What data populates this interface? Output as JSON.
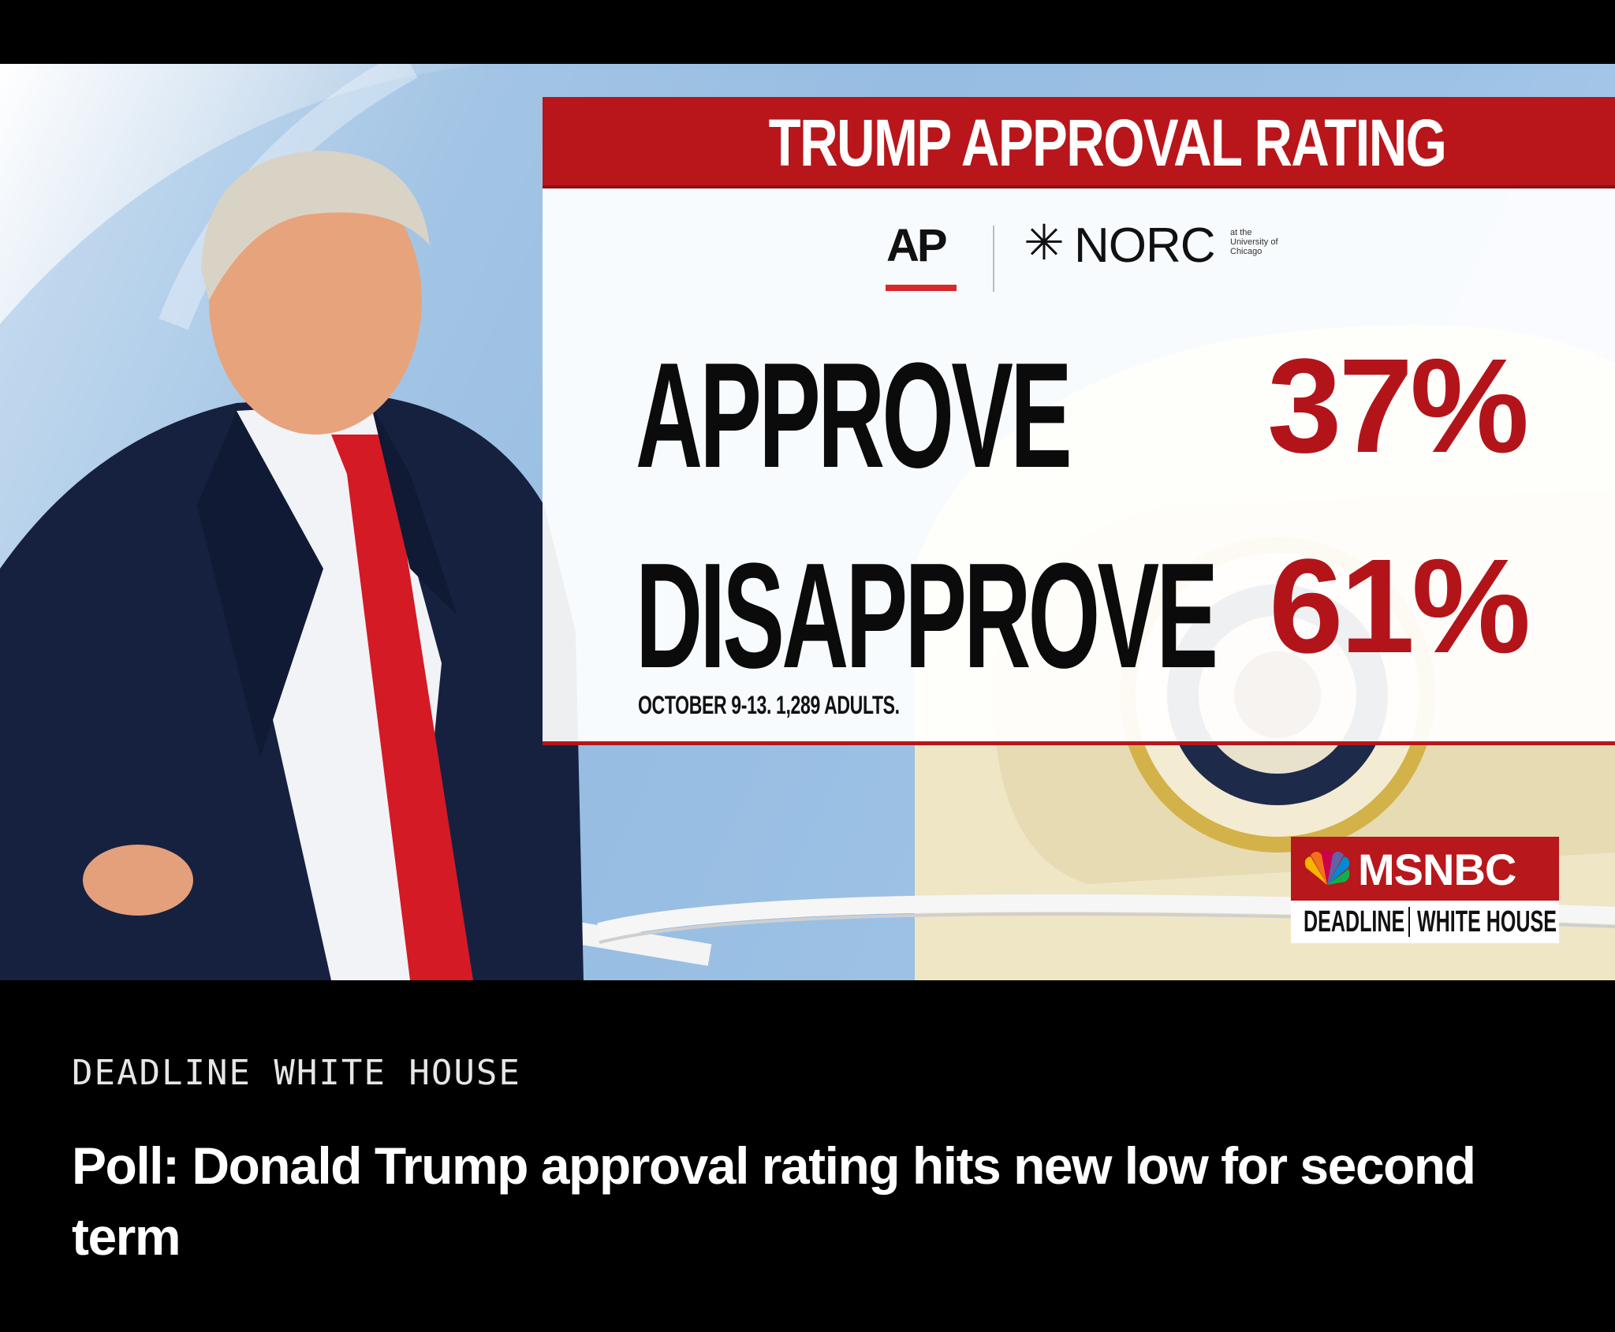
{
  "poll_card": {
    "title": "TRUMP APPROVAL RATING",
    "logos": {
      "ap": "AP",
      "norc": "NORC",
      "norc_sub": [
        "at the",
        "University of",
        "Chicago"
      ]
    },
    "rows": [
      {
        "label": "APPROVE",
        "value": "37%"
      },
      {
        "label": "DISAPPROVE",
        "value": "61%"
      }
    ],
    "footnote": "OCTOBER 9-13. 1,289 ADULTS."
  },
  "network_bug": {
    "network": "MSNBC",
    "show_left": "DEADLINE",
    "show_right": "WHITE HOUSE"
  },
  "article": {
    "section": "DEADLINE WHITE HOUSE",
    "headline": "Poll: Donald Trump approval rating hits new low for second term"
  },
  "colors": {
    "accent_red": "#b8161b",
    "percent_red": "#b3141a",
    "background": "#000000"
  }
}
